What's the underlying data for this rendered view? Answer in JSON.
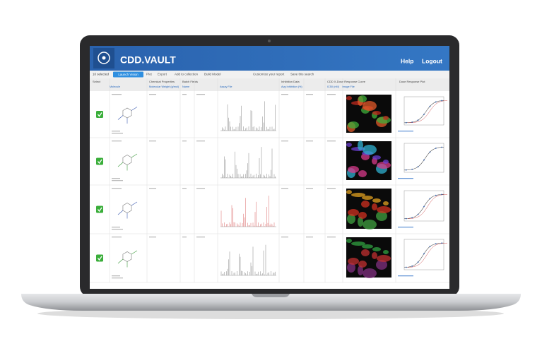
{
  "header": {
    "logo": "CDD.VAULT",
    "nav": [
      "Help",
      "Logout"
    ]
  },
  "toolbar": {
    "selected": "10 selected",
    "launch": "Launch Vision",
    "actions": [
      "Plot",
      "Export",
      "Add to collection",
      "Build Model",
      "Customize your report",
      "Save this search"
    ]
  },
  "table": {
    "groups": [
      "Select",
      "Chemical Properties",
      "Batch Fields",
      "Inhibition Data",
      "CDD X-Dose Response Curve",
      "Dose Response Plot"
    ],
    "columns": [
      "Molecule",
      "Molecular Weight (g/mol)",
      "Name",
      "Assay File",
      "Avg Inhibition (%)",
      "IC50 (nM)",
      "Image File"
    ]
  }
}
